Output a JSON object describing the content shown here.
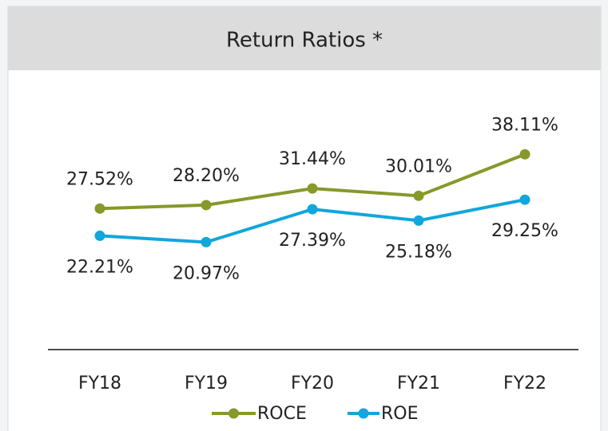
{
  "chart_data": {
    "type": "line",
    "title": "Return Ratios *",
    "categories": [
      "FY18",
      "FY19",
      "FY20",
      "FY21",
      "FY22"
    ],
    "series": [
      {
        "name": "ROCE",
        "color": "#86992a",
        "values": [
          27.52,
          28.2,
          31.44,
          30.01,
          38.11
        ],
        "value_labels": [
          "27.52%",
          "28.20%",
          "31.44%",
          "30.01%",
          "38.11%"
        ]
      },
      {
        "name": "ROE",
        "color": "#11a6dc",
        "values": [
          22.21,
          20.97,
          27.39,
          25.18,
          29.25
        ],
        "value_labels": [
          "22.21%",
          "20.97%",
          "27.39%",
          "25.18%",
          "29.25%"
        ]
      }
    ]
  }
}
